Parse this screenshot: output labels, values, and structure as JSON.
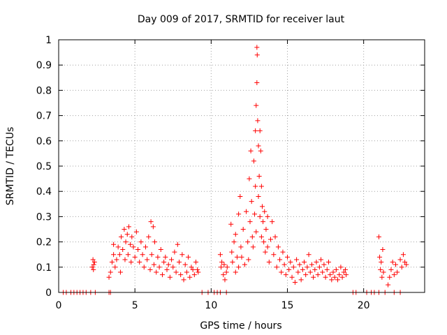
{
  "chart_data": {
    "type": "scatter",
    "title": "Day 009 of 2017, SRMTID for receiver laut",
    "xlabel": "GPS time / hours",
    "ylabel": "SRMTID / TECUs",
    "xlim": [
      0,
      24
    ],
    "ylim": [
      0,
      1
    ],
    "xticks": [
      "0",
      "5",
      "10",
      "15",
      "20"
    ],
    "yticks": [
      "0",
      "0.1",
      "0.2",
      "0.3",
      "0.4",
      "0.5",
      "0.6",
      "0.7",
      "0.8",
      "0.9",
      "1"
    ],
    "grid": true,
    "marker": "+",
    "colors": {
      "series": "#ff0000",
      "axis": "#000000",
      "grid": "#a0a0a0"
    },
    "series": [
      {
        "name": "SRMTID",
        "points": [
          [
            0.3,
            0
          ],
          [
            0.5,
            0
          ],
          [
            0.8,
            0
          ],
          [
            1.0,
            0
          ],
          [
            1.2,
            0
          ],
          [
            1.4,
            0
          ],
          [
            1.6,
            0
          ],
          [
            1.8,
            0
          ],
          [
            2.1,
            0
          ],
          [
            2.4,
            0
          ],
          [
            3.3,
            0
          ],
          [
            3.4,
            0
          ],
          [
            9.4,
            0
          ],
          [
            9.8,
            0
          ],
          [
            10.2,
            0
          ],
          [
            10.4,
            0
          ],
          [
            10.6,
            0
          ],
          [
            11.0,
            0
          ],
          [
            19.3,
            0
          ],
          [
            19.5,
            0
          ],
          [
            20.2,
            0
          ],
          [
            20.5,
            0
          ],
          [
            20.7,
            0
          ],
          [
            21.0,
            0
          ],
          [
            21.4,
            0
          ],
          [
            22.0,
            0
          ],
          [
            22.4,
            0
          ],
          [
            2.2,
            0.1
          ],
          [
            2.25,
            0.13
          ],
          [
            2.3,
            0.11
          ],
          [
            2.35,
            0.12
          ],
          [
            2.28,
            0.09
          ],
          [
            3.3,
            0.06
          ],
          [
            3.4,
            0.08
          ],
          [
            3.5,
            0.12
          ],
          [
            3.6,
            0.15
          ],
          [
            3.6,
            0.19
          ],
          [
            3.7,
            0.1
          ],
          [
            3.8,
            0.13
          ],
          [
            3.9,
            0.18
          ],
          [
            4.0,
            0.15
          ],
          [
            4.05,
            0.08
          ],
          [
            4.1,
            0.22
          ],
          [
            4.2,
            0.17
          ],
          [
            4.3,
            0.25
          ],
          [
            4.35,
            0.13
          ],
          [
            4.4,
            0.2
          ],
          [
            4.5,
            0.23
          ],
          [
            4.55,
            0.15
          ],
          [
            4.6,
            0.26
          ],
          [
            4.7,
            0.19
          ],
          [
            4.75,
            0.12
          ],
          [
            4.8,
            0.22
          ],
          [
            4.9,
            0.18
          ],
          [
            5.0,
            0.14
          ],
          [
            5.1,
            0.24
          ],
          [
            5.2,
            0.17
          ],
          [
            5.3,
            0.12
          ],
          [
            5.4,
            0.2
          ],
          [
            5.5,
            0.15
          ],
          [
            5.6,
            0.1
          ],
          [
            5.7,
            0.18
          ],
          [
            5.8,
            0.13
          ],
          [
            5.9,
            0.22
          ],
          [
            6.0,
            0.09
          ],
          [
            6.05,
            0.28
          ],
          [
            6.1,
            0.15
          ],
          [
            6.2,
            0.26
          ],
          [
            6.25,
            0.11
          ],
          [
            6.3,
            0.2
          ],
          [
            6.4,
            0.08
          ],
          [
            6.5,
            0.14
          ],
          [
            6.6,
            0.1
          ],
          [
            6.7,
            0.17
          ],
          [
            6.8,
            0.07
          ],
          [
            6.9,
            0.12
          ],
          [
            7.0,
            0.14
          ],
          [
            7.1,
            0.09
          ],
          [
            7.2,
            0.11
          ],
          [
            7.3,
            0.06
          ],
          [
            7.4,
            0.13
          ],
          [
            7.5,
            0.1
          ],
          [
            7.6,
            0.16
          ],
          [
            7.7,
            0.08
          ],
          [
            7.8,
            0.19
          ],
          [
            7.9,
            0.12
          ],
          [
            8.0,
            0.07
          ],
          [
            8.1,
            0.15
          ],
          [
            8.2,
            0.05
          ],
          [
            8.3,
            0.11
          ],
          [
            8.4,
            0.08
          ],
          [
            8.5,
            0.14
          ],
          [
            8.6,
            0.06
          ],
          [
            8.7,
            0.1
          ],
          [
            8.8,
            0.09
          ],
          [
            8.9,
            0.07
          ],
          [
            9.0,
            0.12
          ],
          [
            9.1,
            0.09
          ],
          [
            9.15,
            0.08
          ],
          [
            10.6,
            0.15
          ],
          [
            10.65,
            0.1
          ],
          [
            10.7,
            0.12
          ],
          [
            10.8,
            0.07
          ],
          [
            10.85,
            0.11
          ],
          [
            10.9,
            0.05
          ],
          [
            11.0,
            0.08
          ],
          [
            11.05,
            0.1
          ],
          [
            11.3,
            0.27
          ],
          [
            11.35,
            0.16
          ],
          [
            11.4,
            0.12
          ],
          [
            11.5,
            0.2
          ],
          [
            11.6,
            0.08
          ],
          [
            11.6,
            0.23
          ],
          [
            11.7,
            0.14
          ],
          [
            11.8,
            0.31
          ],
          [
            11.8,
            0.1
          ],
          [
            11.9,
            0.38
          ],
          [
            11.95,
            0.18
          ],
          [
            12.0,
            0.14
          ],
          [
            12.1,
            0.25
          ],
          [
            12.2,
            0.11
          ],
          [
            12.3,
            0.32
          ],
          [
            12.4,
            0.2
          ],
          [
            12.45,
            0.13
          ],
          [
            12.5,
            0.45
          ],
          [
            12.55,
            0.28
          ],
          [
            12.6,
            0.56
          ],
          [
            12.65,
            0.36
          ],
          [
            12.7,
            0.22
          ],
          [
            12.75,
            0.18
          ],
          [
            12.8,
            0.52
          ],
          [
            12.85,
            0.31
          ],
          [
            12.9,
            0.64
          ],
          [
            12.9,
            0.42
          ],
          [
            12.95,
            0.74
          ],
          [
            12.95,
            0.24
          ],
          [
            13.0,
            0.97
          ],
          [
            13.0,
            0.83
          ],
          [
            13.02,
            0.94
          ],
          [
            13.05,
            0.68
          ],
          [
            13.1,
            0.58
          ],
          [
            13.1,
            0.38
          ],
          [
            13.15,
            0.46
          ],
          [
            13.2,
            0.3
          ],
          [
            13.2,
            0.64
          ],
          [
            13.25,
            0.56
          ],
          [
            13.3,
            0.42
          ],
          [
            13.3,
            0.22
          ],
          [
            13.35,
            0.34
          ],
          [
            13.4,
            0.28
          ],
          [
            13.45,
            0.2
          ],
          [
            13.5,
            0.32
          ],
          [
            13.55,
            0.16
          ],
          [
            13.6,
            0.25
          ],
          [
            13.7,
            0.3
          ],
          [
            13.7,
            0.18
          ],
          [
            13.8,
            0.12
          ],
          [
            13.9,
            0.21
          ],
          [
            14.0,
            0.28
          ],
          [
            14.1,
            0.15
          ],
          [
            14.2,
            0.22
          ],
          [
            14.3,
            0.1
          ],
          [
            14.4,
            0.18
          ],
          [
            14.5,
            0.13
          ],
          [
            14.6,
            0.08
          ],
          [
            14.7,
            0.16
          ],
          [
            14.8,
            0.11
          ],
          [
            14.9,
            0.07
          ],
          [
            15.0,
            0.14
          ],
          [
            15.1,
            0.09
          ],
          [
            15.2,
            0.12
          ],
          [
            15.3,
            0.06
          ],
          [
            15.4,
            0.1
          ],
          [
            15.5,
            0.04
          ],
          [
            15.6,
            0.13
          ],
          [
            15.7,
            0.08
          ],
          [
            15.8,
            0.11
          ],
          [
            15.9,
            0.05
          ],
          [
            16.0,
            0.09
          ],
          [
            16.1,
            0.12
          ],
          [
            16.2,
            0.07
          ],
          [
            16.3,
            0.1
          ],
          [
            16.4,
            0.15
          ],
          [
            16.5,
            0.08
          ],
          [
            16.6,
            0.11
          ],
          [
            16.7,
            0.06
          ],
          [
            16.8,
            0.09
          ],
          [
            16.9,
            0.12
          ],
          [
            17.0,
            0.07
          ],
          [
            17.1,
            0.1
          ],
          [
            17.2,
            0.13
          ],
          [
            17.3,
            0.08
          ],
          [
            17.4,
            0.11
          ],
          [
            17.5,
            0.06
          ],
          [
            17.6,
            0.09
          ],
          [
            17.7,
            0.12
          ],
          [
            17.8,
            0.07
          ],
          [
            17.9,
            0.05
          ],
          [
            18.0,
            0.08
          ],
          [
            18.1,
            0.06
          ],
          [
            18.2,
            0.09
          ],
          [
            18.3,
            0.05
          ],
          [
            18.4,
            0.07
          ],
          [
            18.5,
            0.1
          ],
          [
            18.6,
            0.06
          ],
          [
            18.7,
            0.08
          ],
          [
            18.8,
            0.09
          ],
          [
            18.85,
            0.07
          ],
          [
            21.0,
            0.22
          ],
          [
            21.05,
            0.14
          ],
          [
            21.1,
            0.09
          ],
          [
            21.15,
            0.12
          ],
          [
            21.2,
            0.06
          ],
          [
            21.25,
            0.17
          ],
          [
            21.3,
            0.08
          ],
          [
            21.6,
            0.03
          ],
          [
            21.7,
            0.06
          ],
          [
            21.8,
            0.09
          ],
          [
            21.9,
            0.12
          ],
          [
            22.0,
            0.07
          ],
          [
            22.1,
            0.11
          ],
          [
            22.2,
            0.08
          ],
          [
            22.4,
            0.13
          ],
          [
            22.5,
            0.1
          ],
          [
            22.6,
            0.15
          ],
          [
            22.7,
            0.12
          ],
          [
            22.8,
            0.11
          ]
        ]
      }
    ]
  }
}
